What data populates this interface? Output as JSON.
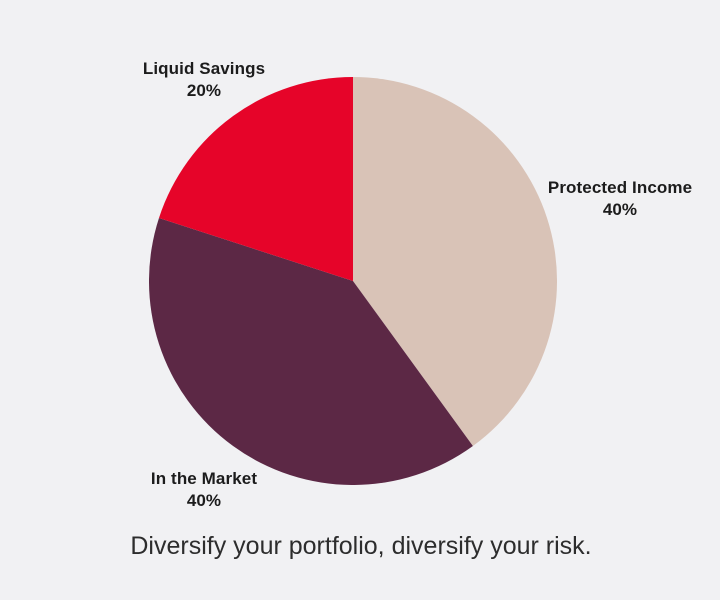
{
  "page": {
    "background_color": "#F1F1F3",
    "caption": "Diversify your portfolio, diversify your risk."
  },
  "chart_data": {
    "type": "pie",
    "title": "",
    "legend": "none",
    "start_angle_deg": 0,
    "direction": "clockwise",
    "slices": [
      {
        "label": "Protected Income",
        "value": 40,
        "pct_label": "40%",
        "color": "#D9C3B7"
      },
      {
        "label": "In the Market",
        "value": 40,
        "pct_label": "40%",
        "color": "#5C2845"
      },
      {
        "label": "Liquid Savings",
        "value": 20,
        "pct_label": "20%",
        "color": "#E60429"
      }
    ]
  }
}
